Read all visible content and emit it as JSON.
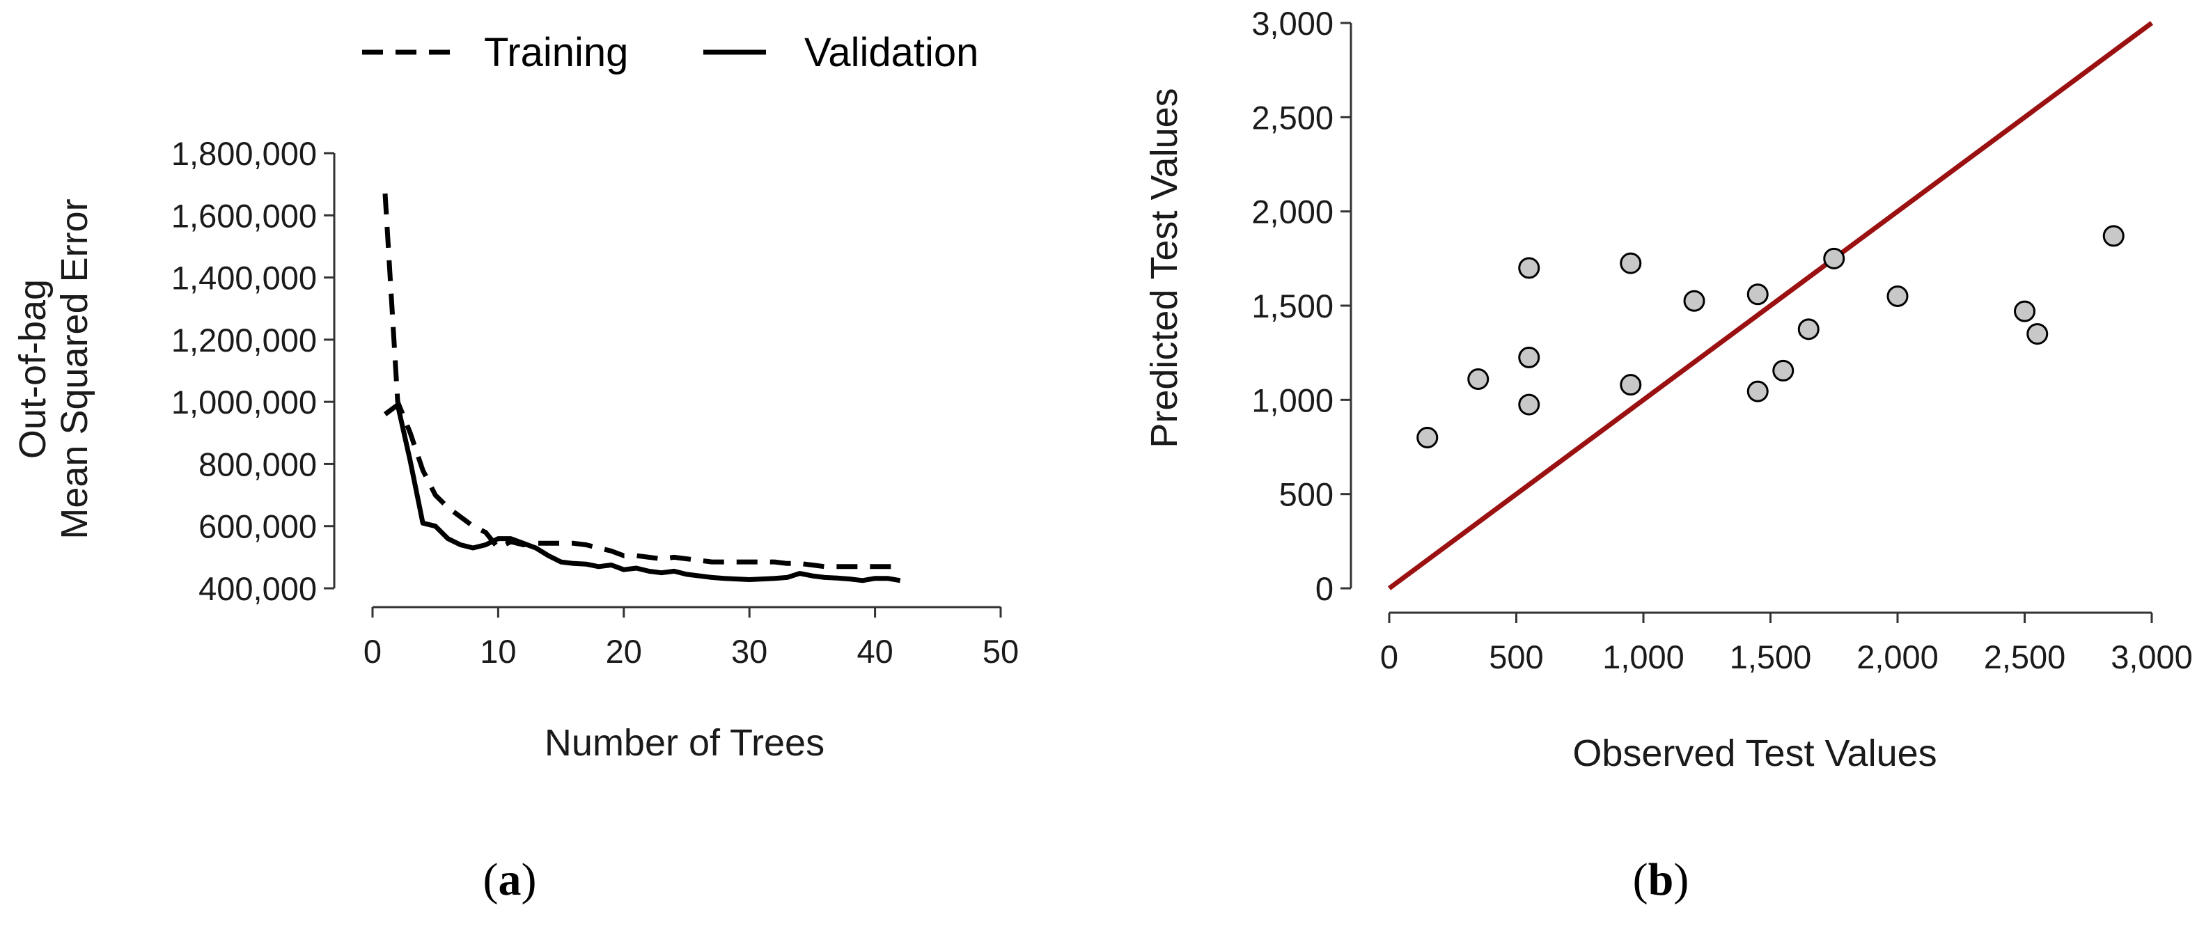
{
  "chart_data": [
    {
      "type": "line",
      "panel": "a",
      "panel_label": "a",
      "title": "",
      "xlabel": "Number of Trees",
      "ylabel_lines": [
        "Out-of-bag",
        "Mean Squared Error"
      ],
      "xlim": [
        0,
        50
      ],
      "ylim": [
        400000,
        1800000
      ],
      "xticks": [
        0,
        10,
        20,
        30,
        40,
        50
      ],
      "xtick_labels": [
        "0",
        "10",
        "20",
        "30",
        "40",
        "50"
      ],
      "yticks": [
        400000,
        600000,
        800000,
        1000000,
        1200000,
        1400000,
        1600000,
        1800000
      ],
      "ytick_labels": [
        "400,000",
        "600,000",
        "800,000",
        "1,000,000",
        "1,200,000",
        "1,400,000",
        "1,600,000",
        "1,800,000"
      ],
      "legend": [
        "Training",
        "Validation"
      ],
      "legend_position": "top",
      "grid": false,
      "series": [
        {
          "name": "Training",
          "style": "dashed",
          "color": "#000000",
          "x": [
            1,
            2,
            3,
            4,
            5,
            6,
            7,
            8,
            9,
            10,
            11,
            12,
            13,
            14,
            15,
            16,
            17,
            18,
            19,
            20,
            21,
            22,
            23,
            24,
            25,
            26,
            27,
            28,
            29,
            30,
            31,
            32,
            33,
            34,
            35,
            36,
            37,
            38,
            39,
            40,
            41,
            42
          ],
          "values": [
            1670000,
            1000000,
            900000,
            780000,
            700000,
            660000,
            630000,
            600000,
            580000,
            530000,
            550000,
            540000,
            545000,
            545000,
            545000,
            545000,
            540000,
            530000,
            520000,
            505000,
            505000,
            500000,
            495000,
            500000,
            495000,
            490000,
            485000,
            485000,
            485000,
            485000,
            485000,
            485000,
            480000,
            480000,
            475000,
            470000,
            470000,
            470000,
            470000,
            470000,
            470000,
            470000
          ]
        },
        {
          "name": "Validation",
          "style": "solid",
          "color": "#000000",
          "x": [
            1,
            2,
            3,
            4,
            5,
            6,
            7,
            8,
            9,
            10,
            11,
            12,
            13,
            14,
            15,
            16,
            17,
            18,
            19,
            20,
            21,
            22,
            23,
            24,
            25,
            26,
            27,
            28,
            29,
            30,
            31,
            32,
            33,
            34,
            35,
            36,
            37,
            38,
            39,
            40,
            41,
            42
          ],
          "values": [
            960000,
            990000,
            810000,
            610000,
            600000,
            560000,
            540000,
            530000,
            540000,
            560000,
            560000,
            545000,
            530000,
            505000,
            485000,
            480000,
            478000,
            470000,
            475000,
            460000,
            465000,
            455000,
            450000,
            455000,
            445000,
            440000,
            435000,
            432000,
            430000,
            428000,
            430000,
            432000,
            435000,
            448000,
            440000,
            435000,
            433000,
            430000,
            425000,
            432000,
            432000,
            425000
          ]
        }
      ]
    },
    {
      "type": "scatter",
      "panel": "b",
      "panel_label": "b",
      "title": "",
      "xlabel": "Observed Test Values",
      "ylabel": "Predicted Test Values",
      "xlim": [
        0,
        3000
      ],
      "ylim": [
        0,
        3000
      ],
      "xticks": [
        0,
        500,
        1000,
        1500,
        2000,
        2500,
        3000
      ],
      "xtick_labels": [
        "0",
        "500",
        "1,000",
        "1,500",
        "2,000",
        "2,500",
        "3,000"
      ],
      "yticks": [
        0,
        500,
        1000,
        1500,
        2000,
        2500,
        3000
      ],
      "ytick_labels": [
        "0",
        "500",
        "1,000",
        "1,500",
        "2,000",
        "2,500",
        "3,000"
      ],
      "grid": false,
      "reference_line": {
        "from": [
          0,
          0
        ],
        "to": [
          3000,
          3000
        ],
        "color": "#9b1010"
      },
      "marker_fill": "#c8c8c8",
      "points": [
        {
          "x": 150,
          "y": 800
        },
        {
          "x": 350,
          "y": 1110
        },
        {
          "x": 550,
          "y": 1700
        },
        {
          "x": 550,
          "y": 1225
        },
        {
          "x": 550,
          "y": 975
        },
        {
          "x": 950,
          "y": 1725
        },
        {
          "x": 950,
          "y": 1080
        },
        {
          "x": 1200,
          "y": 1525
        },
        {
          "x": 1450,
          "y": 1560
        },
        {
          "x": 1450,
          "y": 1045
        },
        {
          "x": 1550,
          "y": 1155
        },
        {
          "x": 1650,
          "y": 1375
        },
        {
          "x": 1750,
          "y": 1750
        },
        {
          "x": 2000,
          "y": 1550
        },
        {
          "x": 2500,
          "y": 1470
        },
        {
          "x": 2550,
          "y": 1350
        },
        {
          "x": 2850,
          "y": 1870
        }
      ]
    }
  ]
}
